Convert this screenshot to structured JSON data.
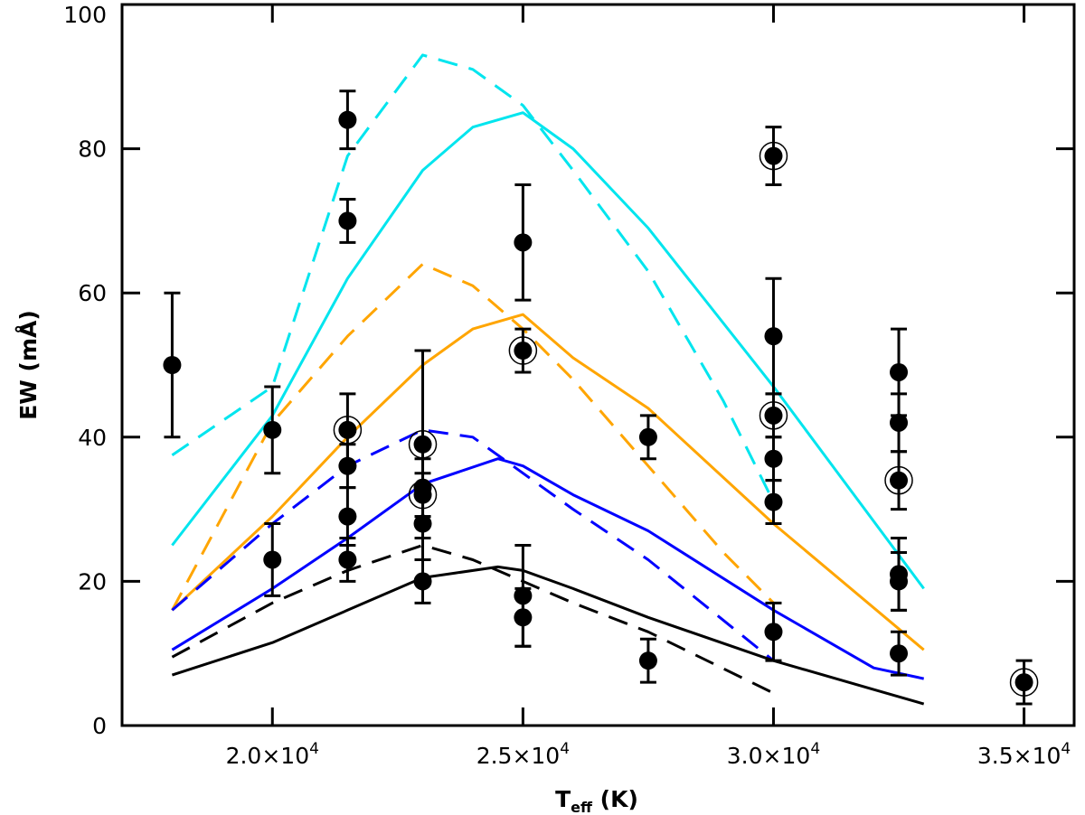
{
  "chart_data": {
    "type": "scatter",
    "title": "",
    "xlabel": {
      "main": "T",
      "sub": "eff",
      "unit": " (K)"
    },
    "ylabel": "EW (mÅ)",
    "xlim": [
      17000,
      36000
    ],
    "ylim": [
      0,
      100
    ],
    "grid": false,
    "x_ticks": [
      {
        "value": 20000,
        "mantissa": "2.0×10",
        "exp": "4"
      },
      {
        "value": 25000,
        "mantissa": "2.5×10",
        "exp": "4"
      },
      {
        "value": 30000,
        "mantissa": "3.0×10",
        "exp": "4"
      },
      {
        "value": 35000,
        "mantissa": "3.5×10",
        "exp": "4"
      }
    ],
    "y_ticks": [
      {
        "value": 0,
        "label": "0"
      },
      {
        "value": 20,
        "label": "20"
      },
      {
        "value": 40,
        "label": "40"
      },
      {
        "value": 60,
        "label": "60"
      },
      {
        "value": 80,
        "label": "80"
      },
      {
        "value": 100,
        "label": "100"
      }
    ],
    "points": [
      {
        "x": 18000,
        "y": 50,
        "err": 10,
        "circled": false
      },
      {
        "x": 20000,
        "y": 41,
        "err": 6,
        "circled": false
      },
      {
        "x": 20000,
        "y": 23,
        "err": 5,
        "circled": false
      },
      {
        "x": 21500,
        "y": 84,
        "err": 4,
        "circled": false
      },
      {
        "x": 21500,
        "y": 70,
        "err": 3,
        "circled": false
      },
      {
        "x": 21500,
        "y": 41,
        "err": 5,
        "circled": true
      },
      {
        "x": 21500,
        "y": 36,
        "err": 3,
        "circled": false
      },
      {
        "x": 21500,
        "y": 29,
        "err": 4,
        "circled": false
      },
      {
        "x": 21500,
        "y": 23,
        "err": 3,
        "circled": false
      },
      {
        "x": 23000,
        "y": 39,
        "err": 13,
        "circled": true
      },
      {
        "x": 23000,
        "y": 33,
        "err": 4,
        "circled": false
      },
      {
        "x": 23000,
        "y": 32,
        "err": 3,
        "circled": true
      },
      {
        "x": 23000,
        "y": 28,
        "err": 5,
        "circled": false
      },
      {
        "x": 23000,
        "y": 20,
        "err": 3,
        "circled": false
      },
      {
        "x": 25000,
        "y": 67,
        "err": 8,
        "circled": false
      },
      {
        "x": 25000,
        "y": 52,
        "err": 3,
        "circled": true
      },
      {
        "x": 25000,
        "y": 18,
        "err": 7,
        "circled": false
      },
      {
        "x": 25000,
        "y": 15,
        "err": 4,
        "circled": false
      },
      {
        "x": 27500,
        "y": 40,
        "err": 3,
        "circled": false
      },
      {
        "x": 27500,
        "y": 9,
        "err": 3,
        "circled": false
      },
      {
        "x": 30000,
        "y": 79,
        "err": 4,
        "circled": true
      },
      {
        "x": 30000,
        "y": 54,
        "err": 8,
        "circled": false
      },
      {
        "x": 30000,
        "y": 43,
        "err": 3,
        "circled": true
      },
      {
        "x": 30000,
        "y": 37,
        "err": 3,
        "circled": false
      },
      {
        "x": 30000,
        "y": 31,
        "err": 3,
        "circled": false
      },
      {
        "x": 30000,
        "y": 13,
        "err": 4,
        "circled": false
      },
      {
        "x": 32500,
        "y": 49,
        "err": 6,
        "circled": false
      },
      {
        "x": 32500,
        "y": 42,
        "err": 4,
        "circled": false
      },
      {
        "x": 32500,
        "y": 34,
        "err": 4,
        "circled": true
      },
      {
        "x": 32500,
        "y": 21,
        "err": 5,
        "circled": false
      },
      {
        "x": 32500,
        "y": 20,
        "err": 4,
        "circled": false
      },
      {
        "x": 32500,
        "y": 10,
        "err": 3,
        "circled": false
      },
      {
        "x": 35000,
        "y": 6,
        "err": 3,
        "circled": true
      }
    ],
    "series": [
      {
        "color": "#00e5ee",
        "dash": true,
        "x": [
          18000,
          20000,
          21500,
          23000,
          24000,
          25000,
          26000,
          27500,
          29000,
          30000
        ],
        "y": [
          37.5,
          47,
          79,
          93,
          91,
          86,
          77,
          63,
          45,
          31
        ]
      },
      {
        "color": "#00e5ee",
        "dash": false,
        "x": [
          18000,
          20000,
          21500,
          23000,
          24000,
          25000,
          26000,
          27500,
          30000,
          33000
        ],
        "y": [
          25,
          43,
          62,
          77,
          83,
          85,
          80,
          69,
          47,
          19
        ]
      },
      {
        "color": "#ffa500",
        "dash": true,
        "x": [
          18000,
          20000,
          21500,
          23000,
          24000,
          25000,
          26000,
          27500,
          29000,
          30000
        ],
        "y": [
          16,
          42,
          54,
          64,
          61,
          55,
          48,
          36,
          24,
          17
        ]
      },
      {
        "color": "#ffa500",
        "dash": false,
        "x": [
          18000,
          20000,
          21500,
          23000,
          24000,
          25000,
          26000,
          27500,
          30000,
          33000
        ],
        "y": [
          16,
          29,
          40,
          50,
          55,
          57,
          51,
          44,
          28,
          10.5
        ]
      },
      {
        "color": "#0000ff",
        "dash": true,
        "x": [
          18000,
          20000,
          21500,
          23000,
          24000,
          25000,
          26000,
          27500,
          30000
        ],
        "y": [
          16,
          28,
          36,
          41,
          40,
          35,
          30,
          23,
          9
        ]
      },
      {
        "color": "#0000ff",
        "dash": false,
        "x": [
          18000,
          20000,
          21500,
          23000,
          24500,
          25000,
          26000,
          27500,
          30000,
          32000,
          33000
        ],
        "y": [
          10.5,
          19,
          26,
          33.5,
          37,
          36,
          32,
          27,
          16,
          8,
          6.5
        ]
      },
      {
        "color": "#000000",
        "dash": true,
        "x": [
          18000,
          20000,
          21500,
          23000,
          24000,
          25000,
          26000,
          27500,
          30000
        ],
        "y": [
          9.5,
          17,
          21.5,
          25,
          23,
          20,
          17,
          13,
          4.5
        ]
      },
      {
        "color": "#000000",
        "dash": false,
        "x": [
          18000,
          20000,
          21500,
          23000,
          24500,
          25000,
          26000,
          27500,
          30000,
          33000
        ],
        "y": [
          7,
          11.5,
          16,
          20.5,
          22,
          21.5,
          19,
          15,
          9,
          3
        ]
      }
    ]
  }
}
